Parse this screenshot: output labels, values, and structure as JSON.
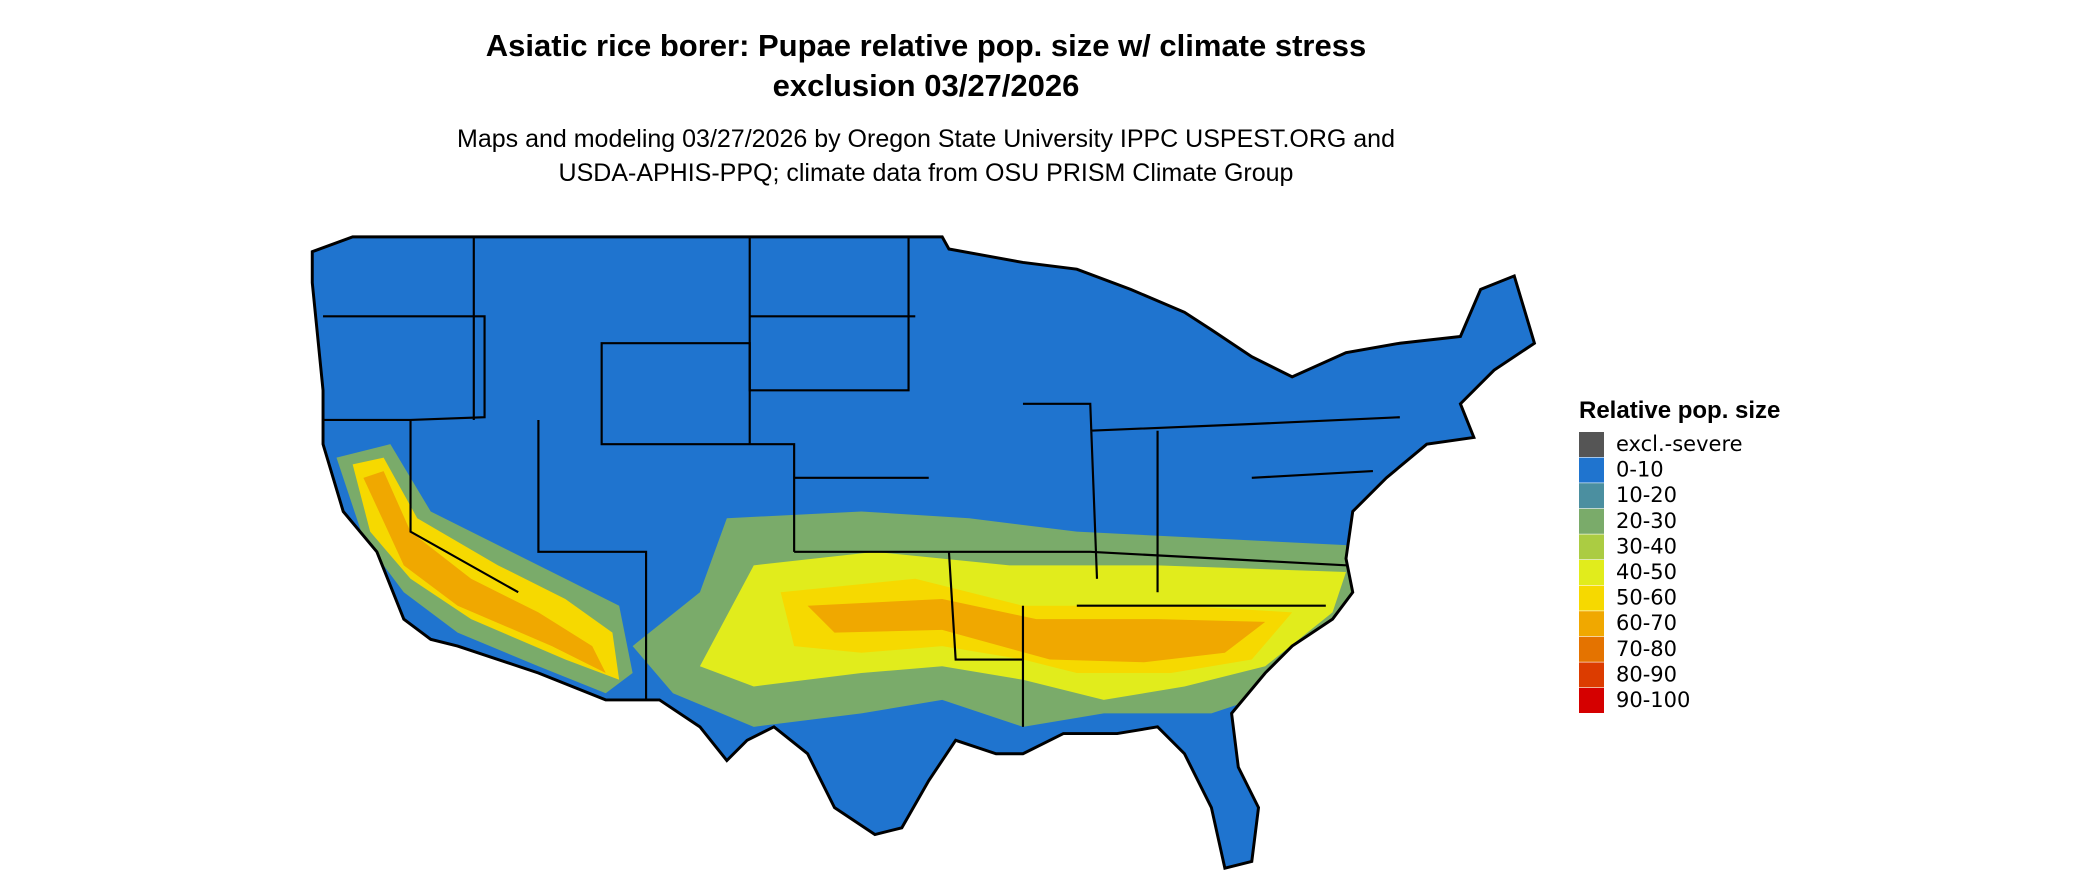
{
  "header": {
    "title_lines": [
      "Asiatic rice borer: Pupae relative pop. size w/ climate stress",
      "exclusion 03/27/2026"
    ],
    "subtitle_lines": [
      "Maps and modeling 03/27/2026 by Oregon State University IPPC USPEST.ORG and",
      "USDA-APHIS-PPQ; climate data from OSU PRISM Climate Group"
    ]
  },
  "legend": {
    "title": "Relative pop. size",
    "items": [
      {
        "label": "excl.-severe",
        "color": "#555555"
      },
      {
        "label": "0-10",
        "color": "#1f74cf"
      },
      {
        "label": "10-20",
        "color": "#4b8fa0"
      },
      {
        "label": "20-30",
        "color": "#7aab6a"
      },
      {
        "label": "30-40",
        "color": "#abcc42"
      },
      {
        "label": "40-50",
        "color": "#e1ec1c"
      },
      {
        "label": "50-60",
        "color": "#f6d900"
      },
      {
        "label": "60-70",
        "color": "#f0a800"
      },
      {
        "label": "70-80",
        "color": "#e47300"
      },
      {
        "label": "80-90",
        "color": "#dc3c00"
      },
      {
        "label": "90-100",
        "color": "#d50000"
      }
    ]
  }
}
